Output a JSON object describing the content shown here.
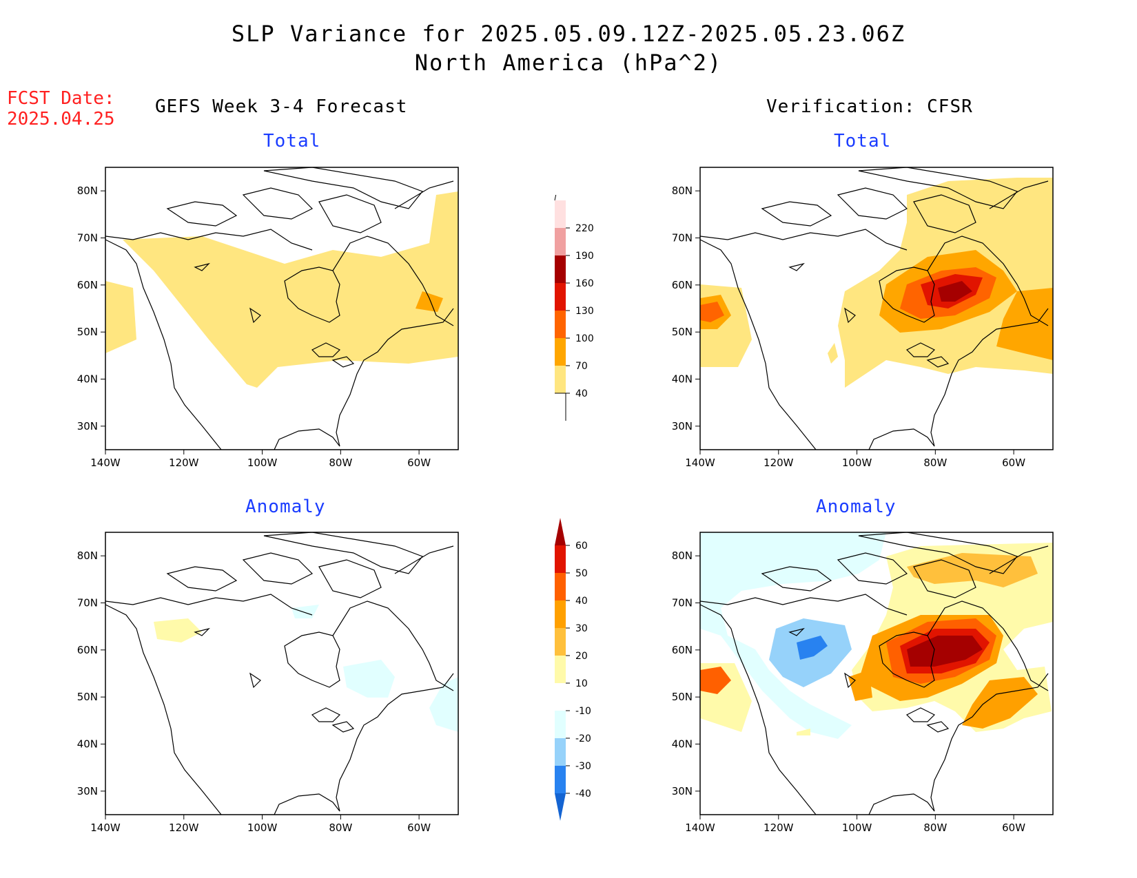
{
  "header": {
    "title_line1": "SLP Variance for 2025.05.09.12Z-2025.05.23.06Z",
    "title_line2": "North America (hPa^2)",
    "fcst_label": "FCST Date:",
    "fcst_date": "2025.04.25"
  },
  "columns": {
    "left_title": "GEFS Week 3-4 Forecast",
    "right_title": "Verification: CFSR"
  },
  "panels": {
    "total_label": "Total",
    "anomaly_label": "Anomaly"
  },
  "axes": {
    "lon_ticks": [
      "140W",
      "120W",
      "100W",
      "80W",
      "60W"
    ],
    "lat_ticks": [
      "80N",
      "70N",
      "60N",
      "50N",
      "40N",
      "30N"
    ],
    "lon_range": [
      -140,
      -50
    ],
    "lat_range": [
      25,
      85
    ]
  },
  "colorbars": {
    "total": {
      "levels": [
        "40",
        "70",
        "100",
        "130",
        "160",
        "190",
        "220"
      ],
      "colors": [
        "#ffe680",
        "#ffa600",
        "#ff6400",
        "#e11400",
        "#a50000",
        "#f0a0a0",
        "#ffe0e0"
      ]
    },
    "anomaly": {
      "levels": [
        "-40",
        "-30",
        "-20",
        "-10",
        "10",
        "20",
        "30",
        "40",
        "50",
        "60"
      ],
      "colors": [
        "#1464d2",
        "#2882f0",
        "#96d2fa",
        "#e1ffff",
        "#ffffff",
        "#fffaaa",
        "#ffc03c",
        "#ffa000",
        "#ff6000",
        "#e11400",
        "#a50000"
      ]
    }
  },
  "colors": {
    "title_blue": "#1a3cff",
    "fcst_red": "#ff2020"
  }
}
